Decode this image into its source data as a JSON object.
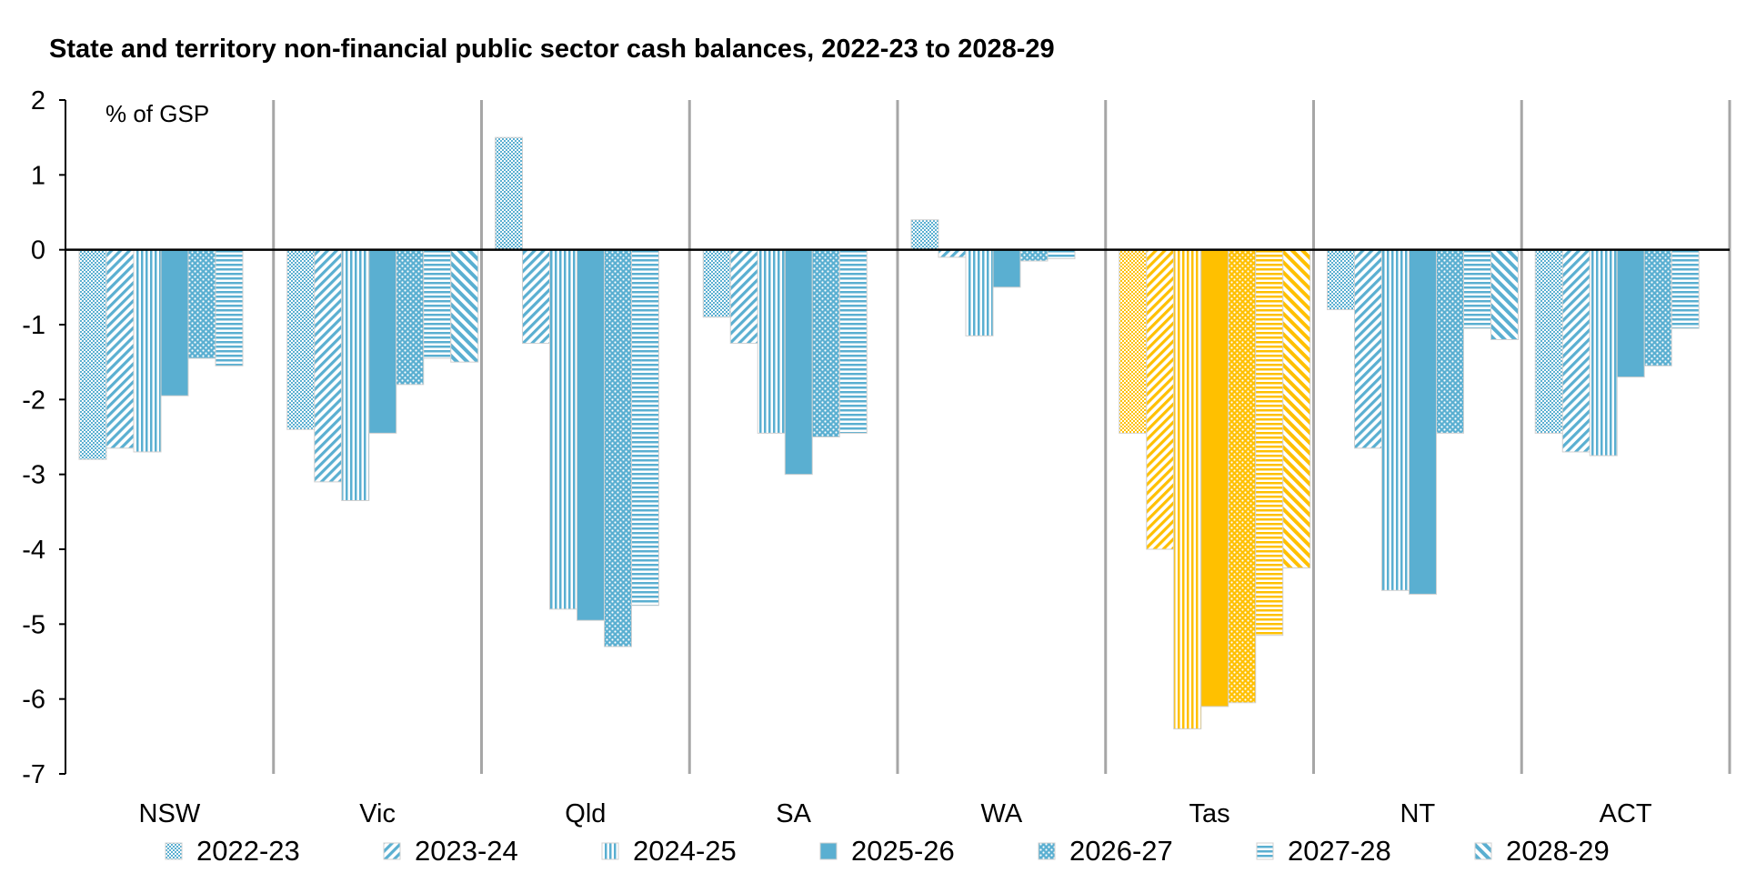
{
  "chart_data": {
    "type": "bar",
    "title": "State and territory non-financial public sector cash balances, 2022-23 to 2028-29",
    "ylabel": "% of GSP",
    "xlabel": "",
    "ylim": [
      -7,
      2
    ],
    "yticks": [
      2,
      1,
      0,
      -1,
      -2,
      -3,
      -4,
      -5,
      -6,
      -7
    ],
    "categories": [
      "NSW",
      "Vic",
      "Qld",
      "SA",
      "WA",
      "Tas",
      "NT",
      "ACT"
    ],
    "highlight_category": "Tas",
    "colors": {
      "default": "#5aafd1",
      "highlight": "#ffc000",
      "axis": "#000000",
      "divider": "#a6a6a6"
    },
    "legend_placement": "bottom",
    "grid": false,
    "series": [
      {
        "name": "2022-23",
        "pattern": "dots",
        "values": [
          -2.8,
          -2.4,
          1.5,
          -0.9,
          0.4,
          -2.45,
          -0.8,
          -2.45
        ]
      },
      {
        "name": "2023-24",
        "pattern": "diagonal",
        "values": [
          -2.65,
          -3.1,
          -1.25,
          -1.25,
          -0.1,
          -4.0,
          -2.65,
          -2.7
        ]
      },
      {
        "name": "2024-25",
        "pattern": "vertical",
        "values": [
          -2.7,
          -3.35,
          -4.8,
          -2.45,
          -1.15,
          -6.4,
          -4.55,
          -2.75
        ]
      },
      {
        "name": "2025-26",
        "pattern": "solid",
        "values": [
          -1.95,
          -2.45,
          -4.95,
          -3.0,
          -0.5,
          -6.1,
          -4.6,
          -1.7
        ]
      },
      {
        "name": "2026-27",
        "pattern": "bigdots",
        "values": [
          -1.45,
          -1.8,
          -5.3,
          -2.5,
          -0.15,
          -6.05,
          -2.45,
          -1.55
        ]
      },
      {
        "name": "2027-28",
        "pattern": "horizontal",
        "values": [
          -1.55,
          -1.45,
          -4.75,
          -2.45,
          -0.12,
          -5.15,
          -1.05,
          -1.05
        ]
      },
      {
        "name": "2028-29",
        "pattern": "wide-diagonal",
        "values": [
          null,
          -1.5,
          null,
          null,
          null,
          -4.25,
          -1.2,
          null
        ]
      }
    ]
  }
}
